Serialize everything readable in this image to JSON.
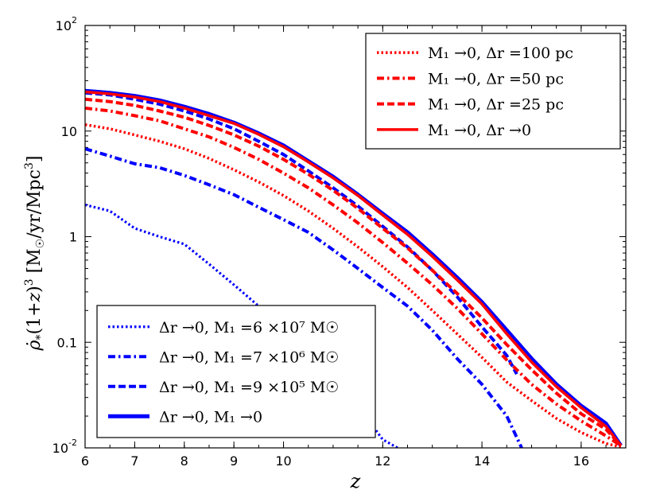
{
  "chart_data": {
    "type": "line",
    "xlabel": "z",
    "ylabel": "ρ̇*(1+z)³ [M☉/yr/Mpc³]",
    "xlim": [
      6,
      16.9
    ],
    "ylim": [
      0.01,
      100
    ],
    "yscale": "log",
    "x_ticks": [
      6,
      7,
      8,
      9,
      10,
      12,
      14,
      16
    ],
    "x_tick_labels": [
      "6",
      "7",
      "8",
      "9",
      "10",
      "12",
      "14",
      "16"
    ],
    "y_ticks": [
      0.01,
      0.1,
      1,
      10,
      100
    ],
    "y_tick_labels": [
      {
        "base": "10",
        "exp": "-2"
      },
      {
        "base": "0.1",
        "exp": ""
      },
      {
        "base": "1",
        "exp": ""
      },
      {
        "base": "10",
        "exp": ""
      },
      {
        "base": "10",
        "exp": "2"
      }
    ],
    "legends": [
      {
        "position": "top-right",
        "entries": [
          {
            "series": "red_100",
            "label": "M₁ →0, Δr =100   pc"
          },
          {
            "series": "red_50",
            "label": "M₁ →0, Δr =50   pc"
          },
          {
            "series": "red_25",
            "label": "M₁ →0, Δr =25   pc"
          },
          {
            "series": "red_0",
            "label": "M₁ →0, Δr →0"
          }
        ]
      },
      {
        "position": "bottom-left",
        "entries": [
          {
            "series": "blue_6e7",
            "label": "Δr →0, M₁ =6 ×10⁷ M☉"
          },
          {
            "series": "blue_7e6",
            "label": "Δr →0, M₁ =7 ×10⁶ M☉"
          },
          {
            "series": "blue_9e5",
            "label": "Δr →0, M₁ =9 ×10⁵ M☉"
          },
          {
            "series": "blue_0",
            "label": "Δr →0, M₁ →0"
          }
        ]
      }
    ],
    "series": [
      {
        "id": "blue_6e7",
        "color": "#0000ff",
        "style": "dotted",
        "width": 3.2,
        "x": [
          6,
          6.5,
          7,
          7.5,
          8,
          8.5,
          9,
          9.5,
          10,
          10.5,
          11,
          11.5,
          12,
          12.3
        ],
        "y": [
          2.0,
          1.75,
          1.2,
          1.0,
          0.85,
          0.55,
          0.35,
          0.22,
          0.14,
          0.075,
          0.045,
          0.025,
          0.012,
          0.01
        ]
      },
      {
        "id": "blue_7e6",
        "color": "#0000ff",
        "style": "dashdot",
        "width": 4,
        "x": [
          6,
          6.5,
          7,
          7.5,
          8,
          8.5,
          9,
          9.5,
          10,
          10.5,
          11,
          11.5,
          12,
          12.5,
          13,
          13.5,
          14,
          14.5,
          14.8
        ],
        "y": [
          6.8,
          5.8,
          4.9,
          4.5,
          3.8,
          3.1,
          2.5,
          1.9,
          1.45,
          1.1,
          0.75,
          0.5,
          0.33,
          0.22,
          0.13,
          0.07,
          0.04,
          0.02,
          0.01
        ]
      },
      {
        "id": "blue_9e5",
        "color": "#0000ff",
        "style": "dashed",
        "width": 4,
        "x": [
          6,
          6.5,
          7,
          7.5,
          8,
          8.5,
          9,
          9.5,
          10,
          10.5,
          11,
          11.5,
          12,
          12.5,
          13,
          13.5,
          14,
          14.5,
          14.7
        ],
        "y": [
          23,
          22,
          20,
          18,
          15.5,
          13,
          10.5,
          8,
          6,
          4.2,
          2.9,
          1.95,
          1.25,
          0.8,
          0.48,
          0.27,
          0.14,
          0.075,
          0.05
        ]
      },
      {
        "id": "blue_0",
        "color": "#0000ff",
        "style": "solid",
        "width": 5,
        "x": [
          6,
          6.5,
          7,
          7.5,
          8,
          8.5,
          9,
          9.5,
          10,
          10.5,
          11,
          11.5,
          12,
          12.5,
          13,
          13.5,
          14,
          14.5,
          15,
          15.5,
          16,
          16.5,
          16.8
        ],
        "y": [
          24,
          23,
          21.5,
          19.5,
          17,
          14.5,
          12,
          9.5,
          7.3,
          5.2,
          3.7,
          2.5,
          1.65,
          1.1,
          0.68,
          0.41,
          0.24,
          0.13,
          0.07,
          0.04,
          0.025,
          0.017,
          0.0105
        ]
      },
      {
        "id": "red_100",
        "color": "#ff0000",
        "style": "dotted",
        "width": 3.5,
        "x": [
          6,
          6.5,
          7,
          7.5,
          8,
          8.5,
          9,
          9.5,
          10,
          10.5,
          11,
          11.5,
          12,
          12.5,
          13,
          13.5,
          14,
          14.5,
          15,
          15.5,
          16,
          16.5,
          16.8
        ],
        "y": [
          11.5,
          10.5,
          9.2,
          8.0,
          6.8,
          5.5,
          4.3,
          3.3,
          2.45,
          1.75,
          1.2,
          0.8,
          0.52,
          0.33,
          0.2,
          0.12,
          0.072,
          0.042,
          0.028,
          0.019,
          0.014,
          0.011,
          0.0102
        ]
      },
      {
        "id": "red_50",
        "color": "#ff0000",
        "style": "dashdot",
        "width": 4,
        "x": [
          6,
          6.5,
          7,
          7.5,
          8,
          8.5,
          9,
          9.5,
          10,
          10.5,
          11,
          11.5,
          12,
          12.5,
          13,
          13.5,
          14,
          14.5,
          15,
          15.5,
          16,
          16.5,
          16.8
        ],
        "y": [
          16.5,
          15.5,
          14,
          12.5,
          10.5,
          8.8,
          7.0,
          5.4,
          4.0,
          2.9,
          2.0,
          1.35,
          0.88,
          0.56,
          0.35,
          0.21,
          0.12,
          0.068,
          0.04,
          0.026,
          0.018,
          0.013,
          0.0105
        ]
      },
      {
        "id": "red_25",
        "color": "#ff0000",
        "style": "dashed",
        "width": 4,
        "x": [
          6,
          6.5,
          7,
          7.5,
          8,
          8.5,
          9,
          9.5,
          10,
          10.5,
          11,
          11.5,
          12,
          12.5,
          13,
          13.5,
          14,
          14.5,
          15,
          15.5,
          16,
          16.5,
          16.8
        ],
        "y": [
          20,
          19,
          17.5,
          15.5,
          13.5,
          11.3,
          9.2,
          7.2,
          5.4,
          3.9,
          2.75,
          1.85,
          1.2,
          0.78,
          0.48,
          0.29,
          0.17,
          0.095,
          0.055,
          0.033,
          0.021,
          0.015,
          0.0105
        ]
      },
      {
        "id": "red_0",
        "color": "#ff0000",
        "style": "solid",
        "width": 3.5,
        "x": [
          6,
          6.5,
          7,
          7.5,
          8,
          8.5,
          9,
          9.5,
          10,
          10.5,
          11,
          11.5,
          12,
          12.5,
          13,
          13.5,
          14,
          14.5,
          15,
          15.5,
          16,
          16.5,
          16.8
        ],
        "y": [
          23.5,
          22.5,
          21,
          19,
          16.5,
          14,
          11.8,
          9.3,
          7.1,
          5.1,
          3.6,
          2.45,
          1.6,
          1.05,
          0.65,
          0.39,
          0.23,
          0.12,
          0.065,
          0.038,
          0.024,
          0.016,
          0.0105
        ]
      }
    ]
  }
}
